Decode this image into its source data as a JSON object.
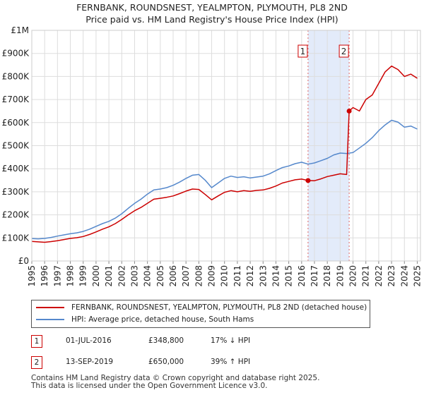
{
  "title": {
    "line1": "FERNBANK, ROUNDSNEST, YEALMPTON, PLYMOUTH, PL8 2ND",
    "line2": "Price paid vs. HM Land Registry's House Price Index (HPI)"
  },
  "chart_data": {
    "type": "line",
    "x_range": [
      1995,
      2025.25
    ],
    "ylim": [
      0,
      1000000
    ],
    "y_ticks": [
      {
        "value": 0,
        "label": "£0"
      },
      {
        "value": 100000,
        "label": "£100K"
      },
      {
        "value": 200000,
        "label": "£200K"
      },
      {
        "value": 300000,
        "label": "£300K"
      },
      {
        "value": 400000,
        "label": "£400K"
      },
      {
        "value": 500000,
        "label": "£500K"
      },
      {
        "value": 600000,
        "label": "£600K"
      },
      {
        "value": 700000,
        "label": "£700K"
      },
      {
        "value": 800000,
        "label": "£800K"
      },
      {
        "value": 900000,
        "label": "£900K"
      },
      {
        "value": 1000000,
        "label": "£1M"
      }
    ],
    "x_ticks": [
      "1995",
      "1996",
      "1997",
      "1998",
      "1999",
      "2000",
      "2001",
      "2002",
      "2003",
      "2004",
      "2005",
      "2006",
      "2007",
      "2008",
      "2009",
      "2010",
      "2011",
      "2012",
      "2013",
      "2014",
      "2015",
      "2016",
      "2017",
      "2018",
      "2019",
      "2020",
      "2021",
      "2022",
      "2023",
      "2024",
      "2025"
    ],
    "grid": true,
    "shaded_region": {
      "from": 2016.5,
      "to": 2019.7
    },
    "series": [
      {
        "name": "FERNBANK, ROUNDSNEST, YEALMPTON, PLYMOUTH, PL8 2ND (detached house)",
        "color": "#cc0000",
        "points": [
          [
            1995.0,
            85000
          ],
          [
            1995.5,
            83000
          ],
          [
            1996.0,
            81000
          ],
          [
            1996.5,
            84000
          ],
          [
            1997.0,
            88000
          ],
          [
            1997.5,
            93000
          ],
          [
            1998.0,
            98000
          ],
          [
            1998.5,
            101000
          ],
          [
            1999.0,
            106000
          ],
          [
            1999.5,
            115000
          ],
          [
            2000.0,
            126000
          ],
          [
            2000.5,
            138000
          ],
          [
            2001.0,
            148000
          ],
          [
            2001.5,
            162000
          ],
          [
            2002.0,
            180000
          ],
          [
            2002.5,
            200000
          ],
          [
            2003.0,
            218000
          ],
          [
            2003.5,
            232000
          ],
          [
            2004.0,
            250000
          ],
          [
            2004.5,
            268000
          ],
          [
            2005.0,
            272000
          ],
          [
            2005.5,
            276000
          ],
          [
            2006.0,
            282000
          ],
          [
            2006.5,
            292000
          ],
          [
            2007.0,
            303000
          ],
          [
            2007.5,
            312000
          ],
          [
            2008.0,
            310000
          ],
          [
            2008.5,
            288000
          ],
          [
            2009.0,
            265000
          ],
          [
            2009.5,
            282000
          ],
          [
            2010.0,
            298000
          ],
          [
            2010.5,
            305000
          ],
          [
            2011.0,
            300000
          ],
          [
            2011.5,
            305000
          ],
          [
            2012.0,
            302000
          ],
          [
            2012.5,
            306000
          ],
          [
            2013.0,
            308000
          ],
          [
            2013.5,
            315000
          ],
          [
            2014.0,
            325000
          ],
          [
            2014.5,
            338000
          ],
          [
            2015.0,
            345000
          ],
          [
            2015.5,
            352000
          ],
          [
            2016.0,
            355000
          ],
          [
            2016.5,
            348800
          ],
          [
            2017.0,
            348000
          ],
          [
            2017.5,
            356000
          ],
          [
            2018.0,
            366000
          ],
          [
            2018.5,
            372000
          ],
          [
            2019.0,
            378000
          ],
          [
            2019.5,
            375000
          ],
          [
            2019.7,
            650000
          ],
          [
            2020.0,
            665000
          ],
          [
            2020.5,
            650000
          ],
          [
            2021.0,
            700000
          ],
          [
            2021.5,
            720000
          ],
          [
            2022.0,
            770000
          ],
          [
            2022.5,
            820000
          ],
          [
            2023.0,
            845000
          ],
          [
            2023.5,
            830000
          ],
          [
            2024.0,
            800000
          ],
          [
            2024.5,
            810000
          ],
          [
            2025.0,
            792000
          ]
        ]
      },
      {
        "name": "HPI: Average price, detached house, South Hams",
        "color": "#5588cc",
        "points": [
          [
            1995.0,
            97000
          ],
          [
            1995.5,
            96000
          ],
          [
            1996.0,
            98000
          ],
          [
            1996.5,
            102000
          ],
          [
            1997.0,
            108000
          ],
          [
            1997.5,
            113000
          ],
          [
            1998.0,
            118000
          ],
          [
            1998.5,
            122000
          ],
          [
            1999.0,
            128000
          ],
          [
            1999.5,
            138000
          ],
          [
            2000.0,
            150000
          ],
          [
            2000.5,
            162000
          ],
          [
            2001.0,
            172000
          ],
          [
            2001.5,
            186000
          ],
          [
            2002.0,
            205000
          ],
          [
            2002.5,
            228000
          ],
          [
            2003.0,
            250000
          ],
          [
            2003.5,
            268000
          ],
          [
            2004.0,
            290000
          ],
          [
            2004.5,
            308000
          ],
          [
            2005.0,
            312000
          ],
          [
            2005.5,
            318000
          ],
          [
            2006.0,
            328000
          ],
          [
            2006.5,
            342000
          ],
          [
            2007.0,
            358000
          ],
          [
            2007.5,
            372000
          ],
          [
            2008.0,
            375000
          ],
          [
            2008.5,
            350000
          ],
          [
            2009.0,
            318000
          ],
          [
            2009.5,
            338000
          ],
          [
            2010.0,
            358000
          ],
          [
            2010.5,
            368000
          ],
          [
            2011.0,
            362000
          ],
          [
            2011.5,
            365000
          ],
          [
            2012.0,
            360000
          ],
          [
            2012.5,
            364000
          ],
          [
            2013.0,
            368000
          ],
          [
            2013.5,
            378000
          ],
          [
            2014.0,
            392000
          ],
          [
            2014.5,
            405000
          ],
          [
            2015.0,
            412000
          ],
          [
            2015.5,
            422000
          ],
          [
            2016.0,
            428000
          ],
          [
            2016.5,
            420000
          ],
          [
            2017.0,
            425000
          ],
          [
            2017.5,
            435000
          ],
          [
            2018.0,
            445000
          ],
          [
            2018.5,
            460000
          ],
          [
            2019.0,
            468000
          ],
          [
            2019.5,
            466000
          ],
          [
            2020.0,
            470000
          ],
          [
            2020.5,
            490000
          ],
          [
            2021.0,
            510000
          ],
          [
            2021.5,
            535000
          ],
          [
            2022.0,
            565000
          ],
          [
            2022.5,
            590000
          ],
          [
            2023.0,
            610000
          ],
          [
            2023.5,
            602000
          ],
          [
            2024.0,
            580000
          ],
          [
            2024.5,
            585000
          ],
          [
            2025.0,
            572000
          ]
        ]
      }
    ],
    "sales": [
      {
        "label": "1",
        "x": 2016.5,
        "price": 348800
      },
      {
        "label": "2",
        "x": 2019.7,
        "price": 650000
      }
    ]
  },
  "legend": {
    "items": [
      {
        "label": "FERNBANK, ROUNDSNEST, YEALMPTON, PLYMOUTH, PL8 2ND (detached house)",
        "color": "#cc0000"
      },
      {
        "label": "HPI: Average price, detached house, South Hams",
        "color": "#5588cc"
      }
    ]
  },
  "sales_table": [
    {
      "num": "1",
      "date": "01-JUL-2016",
      "price": "£348,800",
      "hpi": "17% ↓ HPI"
    },
    {
      "num": "2",
      "date": "13-SEP-2019",
      "price": "£650,000",
      "hpi": "39% ↑ HPI"
    }
  ],
  "footer": {
    "line1": "Contains HM Land Registry data © Crown copyright and database right 2025.",
    "line2": "This data is licensed under the Open Government Licence v3.0."
  }
}
